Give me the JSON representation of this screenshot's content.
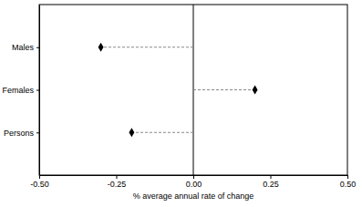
{
  "chart_data": {
    "type": "dot",
    "orientation": "horizontal",
    "x_label": "% average annual rate of change",
    "categories": [
      "Males",
      "Females",
      "Persons"
    ],
    "values": [
      -0.3,
      0.2,
      -0.2
    ],
    "color": "#000000",
    "marker": "diamond",
    "line_style": "dashed",
    "xlim": [
      -0.5,
      0.5
    ],
    "xticks": [
      {
        "value": -0.5,
        "label": "-0.50"
      },
      -0.25,
      {
        "value": 0,
        "label": "0.00"
      },
      0.25,
      {
        "value": 0.5,
        "label": "0.50"
      }
    ],
    "grid": false
  }
}
